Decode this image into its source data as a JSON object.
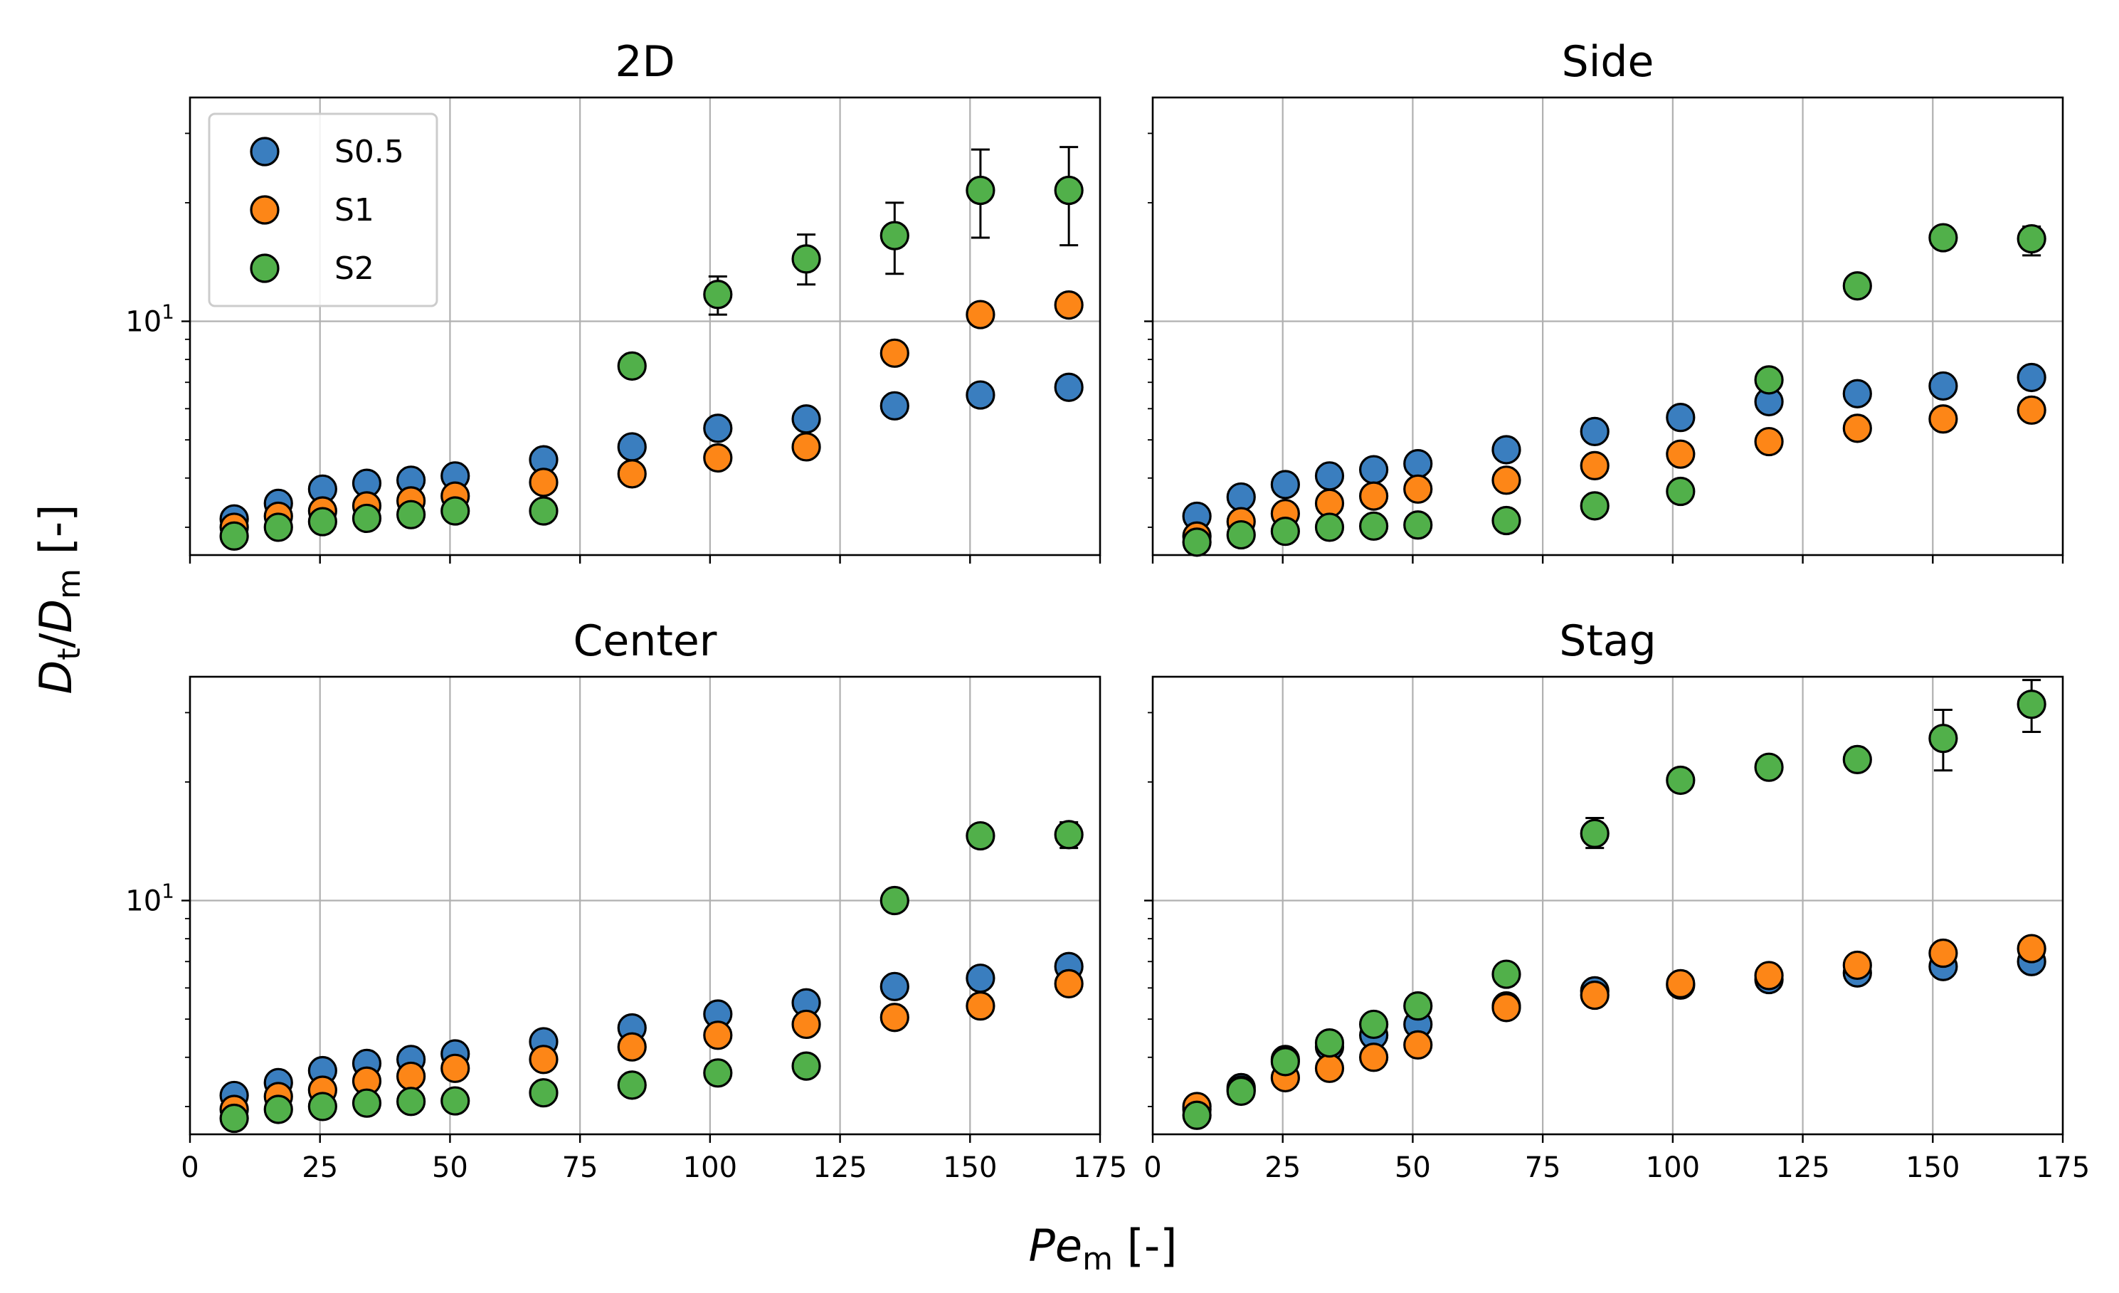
{
  "chart_data": {
    "type": "scatter",
    "x_label": "Pe",
    "x_label_sub": "m",
    "x_label_unit": " [-]",
    "y_label_a": "D",
    "y_label_a_sub": "t",
    "y_label_slash": "/",
    "y_label_b": "D",
    "y_label_b_sub": "m",
    "y_label_unit": " [-]",
    "xlim": [
      0,
      175
    ],
    "ylim": [
      2.55,
      37
    ],
    "x_ticks": [
      0,
      25,
      50,
      75,
      100,
      125,
      150,
      175
    ],
    "x_tick_labels": [
      "0",
      "25",
      "50",
      "75",
      "100",
      "125",
      "150",
      "175"
    ],
    "y_major_tick": 10,
    "y_major_label_base": "10",
    "y_major_label_exp": "1",
    "y_minor_ticks": [
      3,
      4,
      5,
      6,
      7,
      8,
      9,
      20,
      30
    ],
    "grid": true,
    "legend_position": "upper-left (2D panel)",
    "series_meta": [
      {
        "name": "S0.5",
        "color": "#3a7ebf"
      },
      {
        "name": "S1",
        "color": "#fd8617"
      },
      {
        "name": "S2",
        "color": "#51b04a"
      }
    ],
    "x": [
      8.5,
      17,
      25.5,
      34,
      42.5,
      51,
      68,
      85,
      101.5,
      118.5,
      135.5,
      152,
      169
    ],
    "panels": [
      {
        "title": "2D",
        "series": [
          {
            "name": "S0.5",
            "values": [
              3.15,
              3.45,
              3.75,
              3.88,
              3.95,
              4.05,
              4.45,
              4.8,
              5.35,
              5.65,
              6.1,
              6.5,
              6.8
            ]
          },
          {
            "name": "S1",
            "values": [
              3.0,
              3.2,
              3.3,
              3.4,
              3.5,
              3.6,
              3.9,
              4.1,
              4.5,
              4.8,
              8.3,
              10.4,
              11.0
            ]
          },
          {
            "name": "S2",
            "values": [
              2.85,
              3.0,
              3.1,
              3.16,
              3.23,
              3.3,
              3.3,
              7.7,
              11.7,
              14.4,
              16.5,
              21.5,
              21.5
            ]
          },
          {
            "name": "S2_err",
            "lower": [
              null,
              null,
              null,
              null,
              null,
              null,
              null,
              null,
              10.4,
              12.4,
              13.2,
              16.3,
              15.6
            ],
            "upper": [
              null,
              null,
              null,
              null,
              null,
              null,
              null,
              null,
              13.0,
              16.6,
              20.0,
              27.3,
              27.7
            ]
          }
        ]
      },
      {
        "title": "Side",
        "series": [
          {
            "name": "S0.5",
            "values": [
              3.2,
              3.58,
              3.85,
              4.05,
              4.2,
              4.35,
              4.72,
              5.25,
              5.7,
              6.25,
              6.55,
              6.85,
              7.2
            ]
          },
          {
            "name": "S1",
            "values": [
              2.85,
              3.1,
              3.25,
              3.45,
              3.6,
              3.75,
              3.95,
              4.3,
              4.6,
              4.95,
              5.35,
              5.65,
              5.95
            ]
          },
          {
            "name": "S2",
            "values": [
              2.75,
              2.87,
              2.93,
              3.0,
              3.02,
              3.04,
              3.12,
              3.4,
              3.7,
              7.1,
              12.3,
              16.3,
              16.2
            ]
          },
          {
            "name": "S2_err",
            "lower": [
              null,
              null,
              null,
              null,
              null,
              null,
              null,
              null,
              null,
              null,
              null,
              null,
              14.7
            ],
            "upper": [
              null,
              null,
              null,
              null,
              null,
              null,
              null,
              null,
              null,
              null,
              null,
              null,
              17.4
            ]
          }
        ]
      },
      {
        "title": "Center",
        "series": [
          {
            "name": "S0.5",
            "values": [
              3.2,
              3.45,
              3.7,
              3.86,
              3.95,
              4.08,
              4.38,
              4.75,
              5.15,
              5.5,
              6.05,
              6.35,
              6.8
            ]
          },
          {
            "name": "S1",
            "values": [
              2.95,
              3.18,
              3.3,
              3.48,
              3.58,
              3.75,
              3.95,
              4.25,
              4.55,
              4.85,
              5.05,
              5.4,
              6.15
            ]
          },
          {
            "name": "S2",
            "values": [
              2.8,
              2.95,
              3.0,
              3.06,
              3.09,
              3.1,
              3.25,
              3.4,
              3.65,
              3.8,
              10.0,
              14.6,
              14.7
            ]
          },
          {
            "name": "S2_err",
            "lower": [
              null,
              null,
              null,
              null,
              null,
              null,
              null,
              null,
              null,
              null,
              null,
              null,
              13.6
            ],
            "upper": [
              null,
              null,
              null,
              null,
              null,
              null,
              null,
              null,
              null,
              null,
              null,
              null,
              15.8
            ]
          }
        ]
      },
      {
        "title": "Stag",
        "series": [
          {
            "name": "S0.5",
            "values": [
              2.95,
              3.35,
              3.95,
              4.25,
              4.55,
              4.85,
              5.4,
              5.9,
              6.1,
              6.3,
              6.55,
              6.8,
              7.0
            ]
          },
          {
            "name": "S1",
            "values": [
              3.0,
              3.3,
              3.55,
              3.75,
              4.0,
              4.3,
              5.35,
              5.75,
              6.15,
              6.45,
              6.85,
              7.35,
              7.55
            ]
          },
          {
            "name": "S2",
            "values": [
              2.85,
              3.28,
              3.9,
              4.35,
              4.85,
              5.4,
              6.5,
              14.8,
              20.2,
              21.8,
              22.8,
              25.8,
              31.5
            ]
          },
          {
            "name": "S2_err",
            "lower": [
              null,
              null,
              null,
              null,
              null,
              null,
              null,
              13.6,
              null,
              20.6,
              null,
              21.4,
              26.8
            ],
            "upper": [
              null,
              null,
              null,
              null,
              null,
              null,
              null,
              16.2,
              null,
              23.1,
              null,
              30.5,
              36.3
            ]
          }
        ]
      }
    ]
  }
}
